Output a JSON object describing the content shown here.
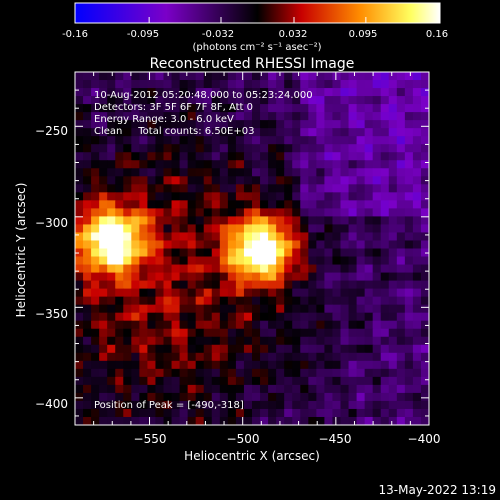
{
  "colorbar": {
    "ticks": [
      "-0.16",
      "-0.095",
      "-0.032",
      "0.032",
      "0.095",
      "0.16"
    ],
    "tick_values": [
      -0.16,
      -0.095,
      -0.032,
      0.032,
      0.095,
      0.16
    ],
    "range": [
      -0.16,
      0.16
    ],
    "unit_label": "(photons cm⁻² s⁻¹ asec⁻²)",
    "gradient": [
      "#0000ff",
      "#7b00c8",
      "#000000",
      "#c80000",
      "#ff8c00",
      "#ffff60",
      "#ffffff"
    ]
  },
  "chart_data": {
    "type": "heatmap",
    "title": "Reconstructed RHESSI Image",
    "xlabel": "Heliocentric X (arcsec)",
    "ylabel": "Heliocentric Y (arcsec)",
    "xlim": [
      -590,
      -400
    ],
    "ylim": [
      -415,
      -220
    ],
    "xticks": [
      -550,
      -500,
      -450,
      -400
    ],
    "xtick_labels": [
      "−550",
      "−500",
      "−450",
      "−400"
    ],
    "yticks": [
      -250,
      -300,
      -350,
      -400
    ],
    "ytick_labels": [
      "−250",
      "−300",
      "−350",
      "−400"
    ],
    "sources": [
      {
        "x": -490,
        "y": -318,
        "peak": 1.0
      },
      {
        "x": -570,
        "y": -313,
        "peak": 0.95
      }
    ],
    "peak_position": [
      -490,
      -318
    ],
    "annotations": [
      "10-Aug-2012 05:20:48.000 to 05:23:24.000",
      "Detectors: 3F 5F 6F 7F 8F, Att 0",
      "Energy Range: 3.0 - 6.0 keV",
      "Clean     Total counts: 6.50E+03"
    ],
    "peak_label": "Position of Peak = [-490,-318]"
  },
  "footer": {
    "timestamp": "13-May-2022 13:19"
  }
}
